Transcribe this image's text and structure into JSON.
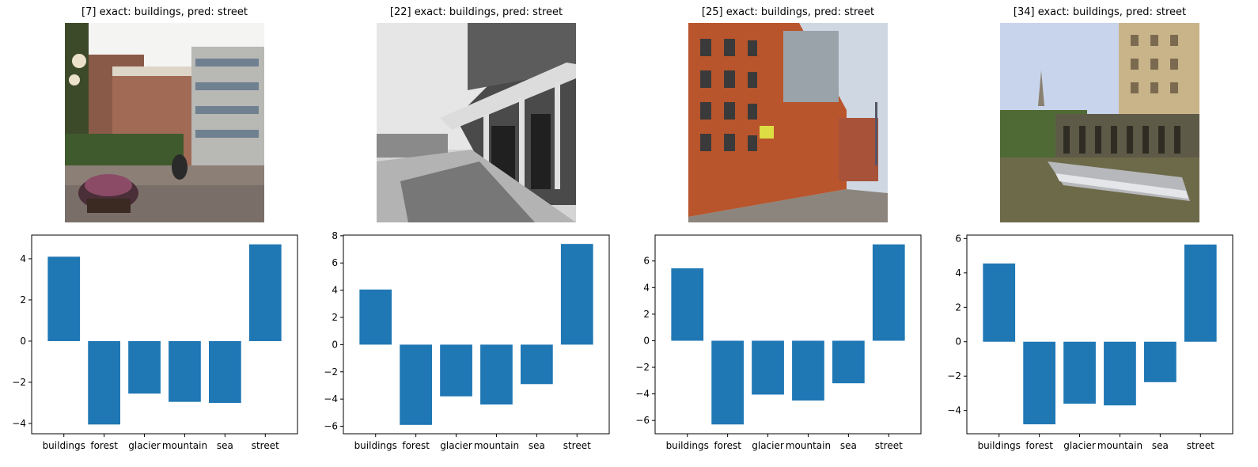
{
  "figure": {
    "panels": [
      {
        "title": "[7] exact: buildings, pred: street",
        "image_desc": "courtyard-buildings"
      },
      {
        "title": "[22] exact: buildings, pred: street",
        "image_desc": "grayscale-wooden-storefront"
      },
      {
        "title": "[25] exact: buildings, pred: street",
        "image_desc": "brick-warehouse-street"
      },
      {
        "title": "[34] exact: buildings, pred: street",
        "image_desc": "weir-river-colonnade"
      }
    ]
  },
  "colors": {
    "bar": "#1f77b4",
    "axis": "#000000"
  },
  "chart_data": [
    {
      "type": "bar",
      "categories": [
        "buildings",
        "forest",
        "glacier",
        "mountain",
        "sea",
        "street"
      ],
      "values": [
        4.1,
        -4.05,
        -2.55,
        -2.95,
        -3.0,
        4.7
      ],
      "yticks": [
        4,
        2,
        0,
        -2,
        -4
      ],
      "ylim": [
        -4.5,
        5.15
      ],
      "grid": false
    },
    {
      "type": "bar",
      "categories": [
        "buildings",
        "forest",
        "glacier",
        "mountain",
        "sea",
        "street"
      ],
      "values": [
        4.05,
        -5.9,
        -3.8,
        -4.4,
        -2.9,
        7.4
      ],
      "yticks": [
        8,
        6,
        4,
        2,
        0,
        -2,
        -4,
        -6
      ],
      "ylim": [
        -6.55,
        8.05
      ],
      "grid": false
    },
    {
      "type": "bar",
      "categories": [
        "buildings",
        "forest",
        "glacier",
        "mountain",
        "sea",
        "street"
      ],
      "values": [
        5.45,
        -6.3,
        -4.05,
        -4.5,
        -3.2,
        7.25
      ],
      "yticks": [
        6,
        4,
        2,
        0,
        -2,
        -4,
        -6
      ],
      "ylim": [
        -7.0,
        7.95
      ],
      "grid": false
    },
    {
      "type": "bar",
      "categories": [
        "buildings",
        "forest",
        "glacier",
        "mountain",
        "sea",
        "street"
      ],
      "values": [
        4.55,
        -4.8,
        -3.6,
        -3.7,
        -2.35,
        5.65
      ],
      "yticks": [
        6,
        4,
        2,
        0,
        -2,
        -4
      ],
      "ylim": [
        -5.35,
        6.2
      ],
      "grid": false
    }
  ]
}
